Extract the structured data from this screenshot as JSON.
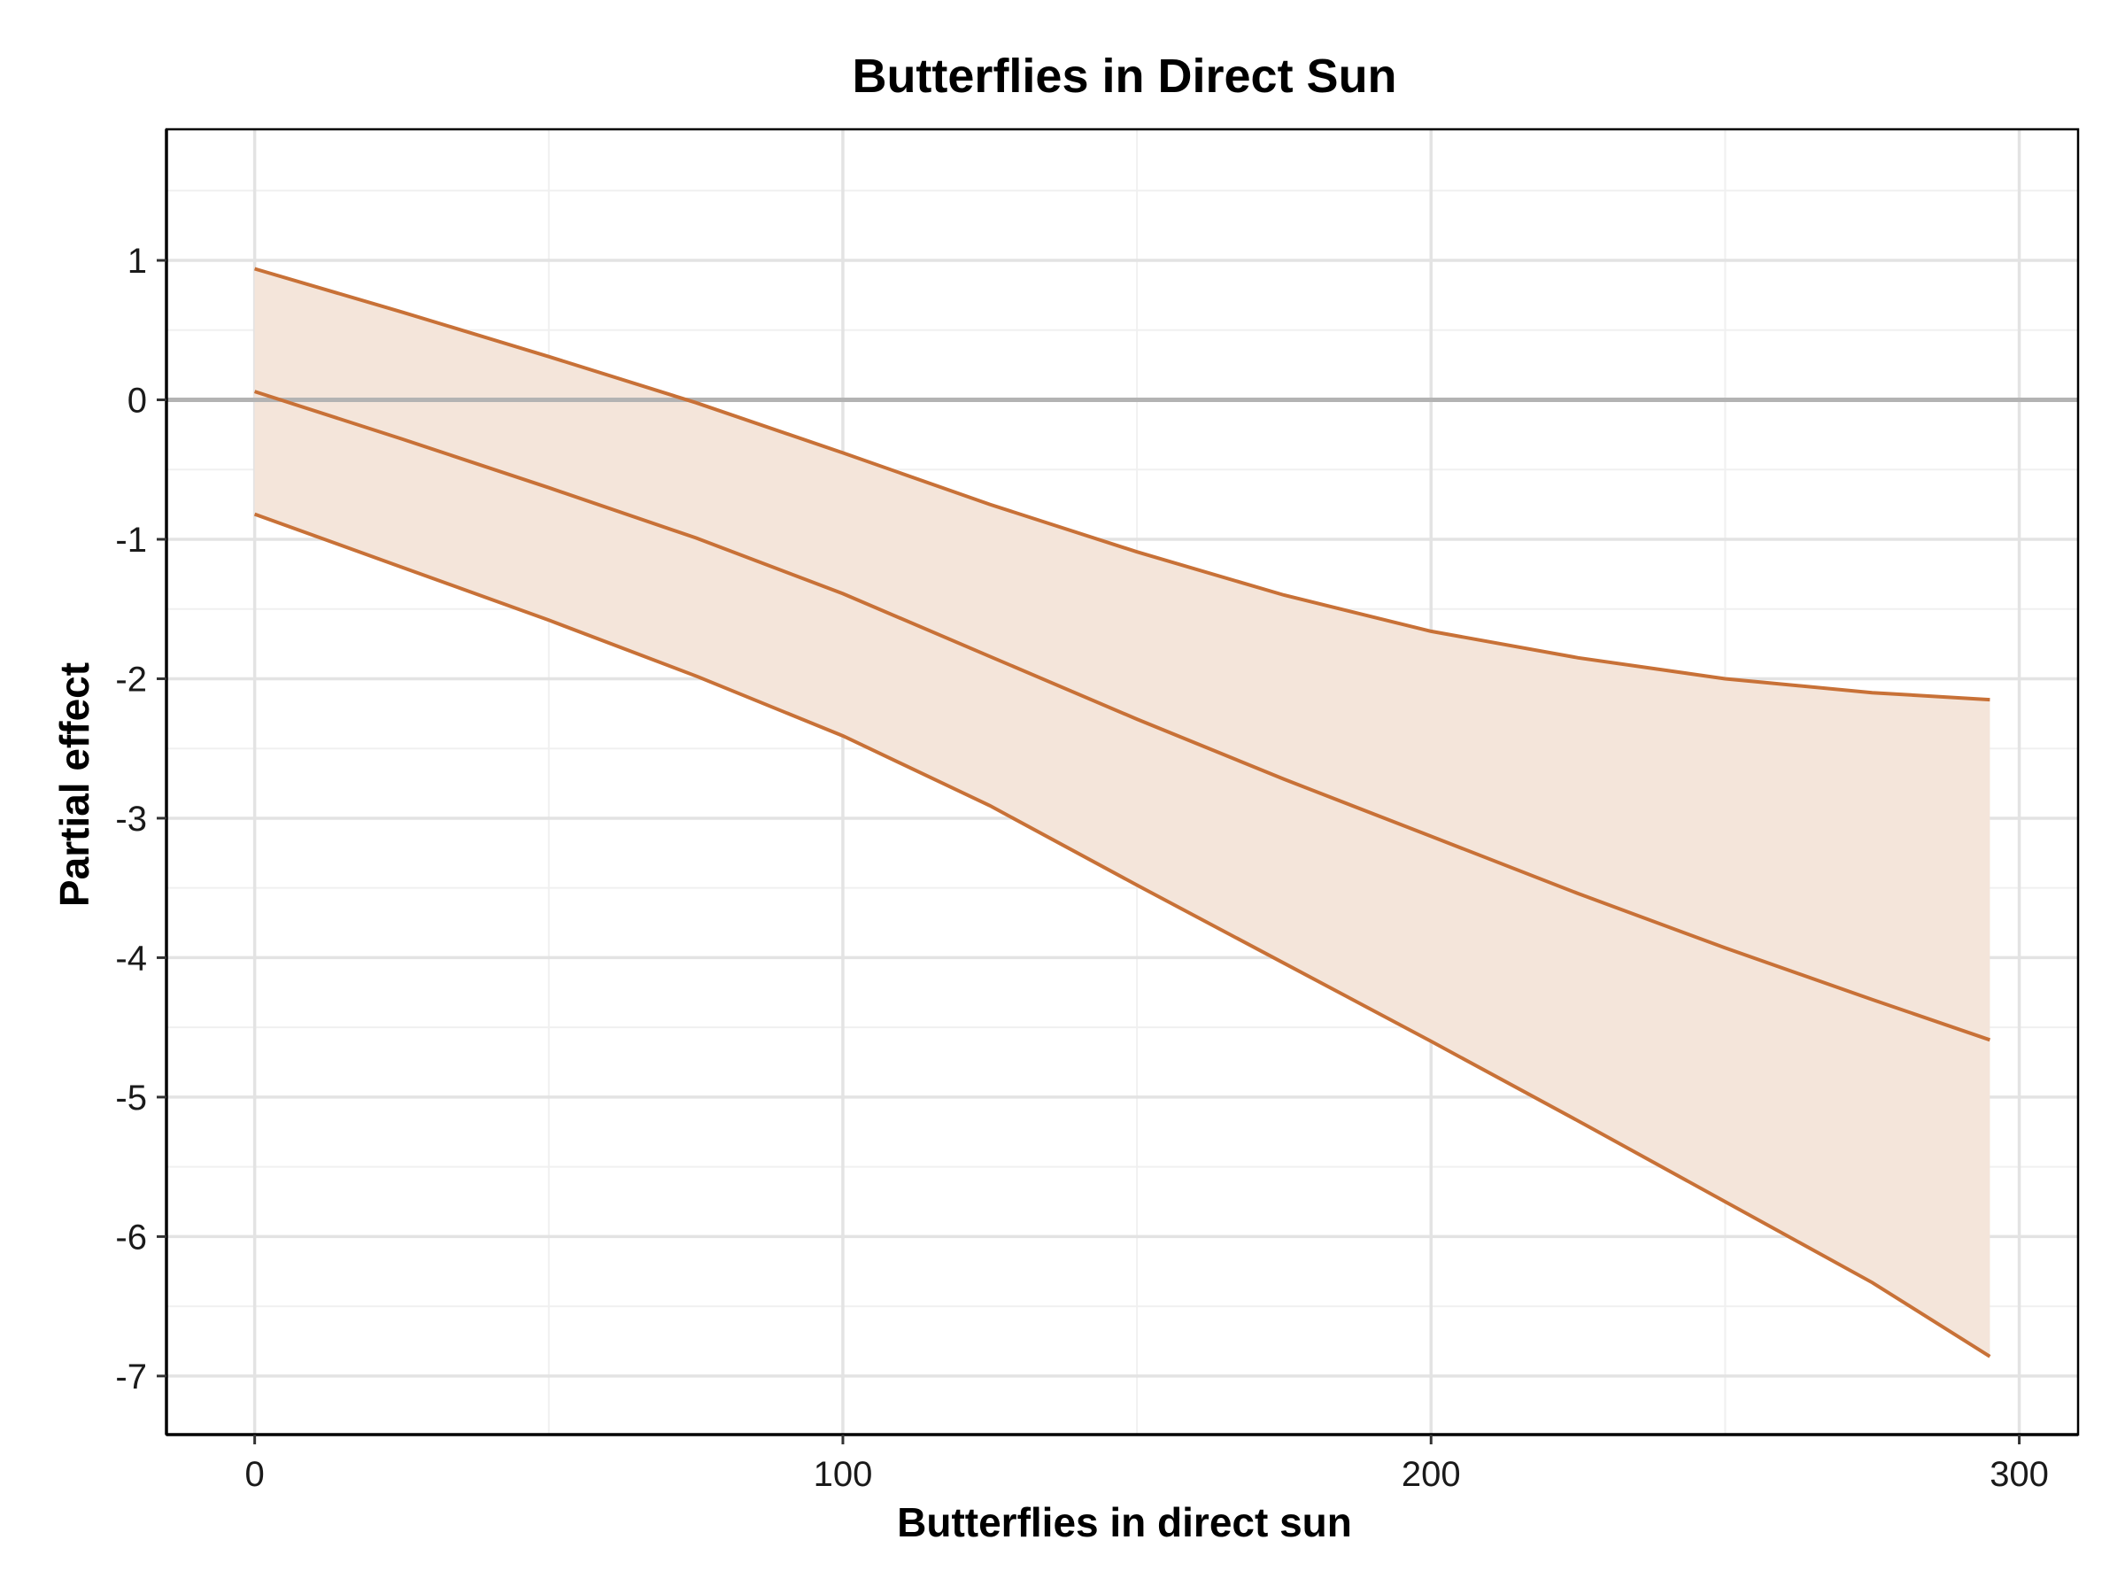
{
  "chart_data": {
    "type": "line",
    "title": "Butterflies in Direct Sun",
    "xlabel": "Butterflies in direct sun",
    "ylabel": "Partial effect",
    "xlim": [
      -15,
      310
    ],
    "ylim": [
      -7.42,
      1.94
    ],
    "x_ticks": [
      0,
      100,
      200,
      300
    ],
    "x_tick_labels": [
      "0",
      "100",
      "200",
      "300"
    ],
    "y_ticks": [
      1,
      0,
      -1,
      -2,
      -3,
      -4,
      -5,
      -6,
      -7
    ],
    "y_tick_labels": [
      "1",
      "0",
      "-1",
      "-2",
      "-3",
      "-4",
      "-5",
      "-6",
      "-7"
    ],
    "reference_line": 0,
    "grid": true,
    "colors": {
      "line": "#c87137",
      "band": "#f4e5da",
      "reference": "#b3b3b3"
    },
    "x": [
      0,
      25,
      50,
      75,
      100,
      125,
      150,
      175,
      200,
      225,
      250,
      275,
      295
    ],
    "series": [
      {
        "role": "estimate",
        "values": [
          0.06,
          -0.28,
          -0.63,
          -0.99,
          -1.39,
          -1.84,
          -2.29,
          -2.72,
          -3.13,
          -3.54,
          -3.93,
          -4.3,
          -4.59
        ]
      },
      {
        "role": "upper",
        "values": [
          0.94,
          0.63,
          0.31,
          -0.02,
          -0.38,
          -0.75,
          -1.09,
          -1.4,
          -1.66,
          -1.85,
          -2.0,
          -2.1,
          -2.15
        ]
      },
      {
        "role": "lower",
        "values": [
          -0.82,
          -1.2,
          -1.58,
          -1.98,
          -2.41,
          -2.91,
          -3.48,
          -4.04,
          -4.6,
          -5.17,
          -5.75,
          -6.33,
          -6.86
        ]
      }
    ]
  }
}
